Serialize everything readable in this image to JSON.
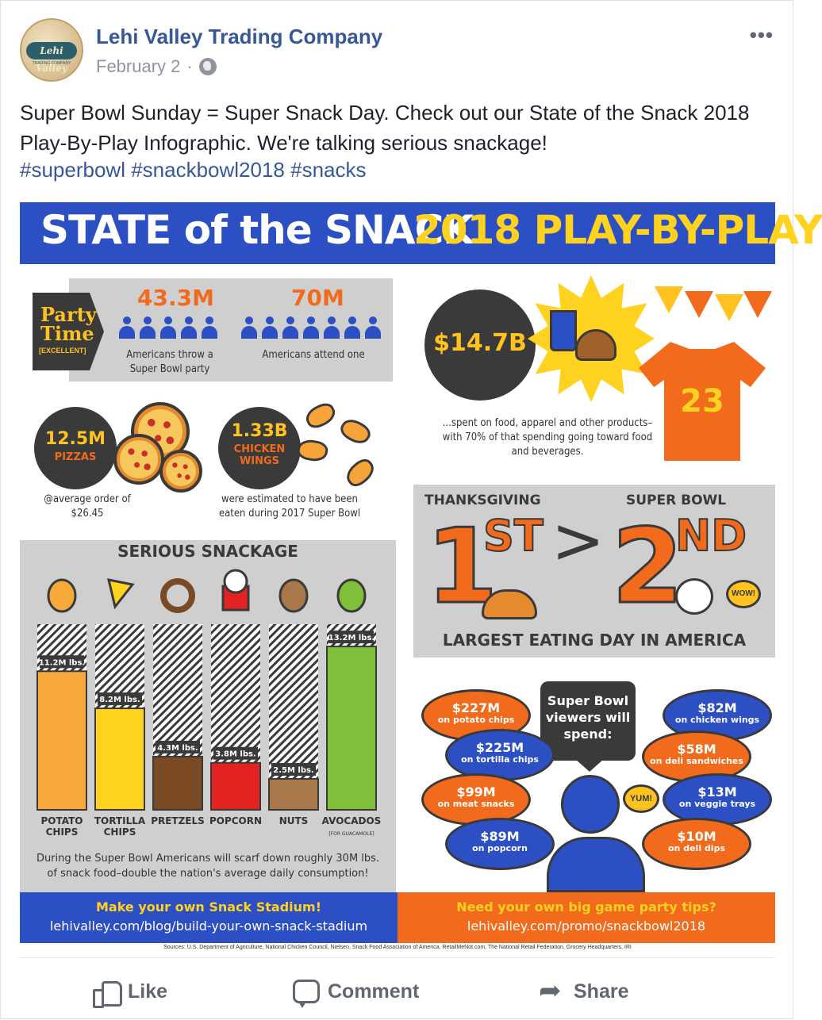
{
  "post": {
    "page_name": "Lehi Valley Trading Company",
    "date": "February 2",
    "separator": "·",
    "more": "•••",
    "avatar_logo": "Lehi Valley",
    "avatar_sub": "TRADING COMPANY",
    "text": "Super Bowl Sunday = Super Snack Day. Check out our State of the Snack 2018 Play-By-Play Infographic. We're talking serious snackage!",
    "hashtags": "#superbowl #snackbowl2018 #snacks"
  },
  "infographic": {
    "title_white": "STATE of the SNACK",
    "title_yellow": "2018 PLAY-BY-PLAY",
    "party": {
      "tag_line1": "Party",
      "tag_line2": "Time",
      "tag_sub": "[EXCELLENT]",
      "stat1": "43.3M",
      "stat1_caption": "Americans throw a Super Bowl party",
      "stat2": "70M",
      "stat2_caption": "Americans attend one"
    },
    "spend": {
      "amount": "$14.7B",
      "caption": "...spent on food, apparel and other products– with 70% of that spending going toward food and beverages.",
      "jersey_number": "23"
    },
    "pizzas": {
      "amount": "12.5M",
      "label": "PIZZAS",
      "caption": "@average order of $26.45"
    },
    "wings": {
      "amount": "1.33B",
      "label": "CHICKEN WINGS",
      "caption": "were estimated to have been eaten during 2017 Super Bowl"
    },
    "eating_day": {
      "left_label": "THANKSGIVING",
      "left_rank": "1",
      "left_suffix": "ST",
      "right_label": "SUPER BOWL",
      "right_rank": "2",
      "right_suffix": "ND",
      "wow": "WOW!",
      "caption": "LARGEST EATING DAY IN AMERICA"
    },
    "snackage": {
      "title": "SERIOUS SNACKAGE",
      "footnote": "During the Super Bowl Americans will scarf down roughly 30M lbs. of snack food–double the nation's average daily consumption!"
    },
    "viewers": {
      "box_text": "Super Bowl viewers will spend:",
      "yum": "YUM!",
      "items": [
        {
          "amount": "$227M",
          "label": "on potato chips"
        },
        {
          "amount": "$225M",
          "label": "on tortilla chips"
        },
        {
          "amount": "$99M",
          "label": "on meat snacks"
        },
        {
          "amount": "$89M",
          "label": "on popcorn"
        },
        {
          "amount": "$82M",
          "label": "on chicken wings"
        },
        {
          "amount": "$58M",
          "label": "on deli sandwiches"
        },
        {
          "amount": "$13M",
          "label": "on veggie trays"
        },
        {
          "amount": "$10M",
          "label": "on deli dips"
        }
      ]
    },
    "footer": {
      "left_title": "Make your own Snack Stadium!",
      "left_url": "lehivalley.com/blog/build-your-own-snack-stadium",
      "right_title": "Need your own big game party tips?",
      "right_url": "lehivalley.com/promo/snackbowl2018",
      "sources": "Sources: U.S. Department of Agriculture, National Chicken Council, Nielsen, Snack Food Association of America, RetailMeNot.com, The National Retail Federation, Grocery Headquarters, IRI"
    },
    "colors": {
      "blue": "#2c4fc4",
      "orange": "#f26a1b",
      "yellow": "#ffd21f",
      "dark": "#3a3a3a",
      "grey": "#cfcfcf"
    }
  },
  "chart_data": {
    "type": "bar",
    "title": "SERIOUS SNACKAGE",
    "categories": [
      "POTATO CHIPS",
      "TORTILLA CHIPS",
      "PRETZELS",
      "POPCORN",
      "NUTS",
      "AVOCADOS"
    ],
    "category_sub": [
      "",
      "",
      "",
      "",
      "",
      "[FOR GUACAMOLE]"
    ],
    "values": [
      11.2,
      8.2,
      4.3,
      3.8,
      2.5,
      13.2
    ],
    "value_labels": [
      "11.2M lbs.",
      "8.2M lbs.",
      "4.3M lbs.",
      "3.8M lbs.",
      "2.5M lbs.",
      "13.2M lbs."
    ],
    "unit": "M lbs.",
    "colors": [
      "#f7a93a",
      "#ffd21f",
      "#7a4a24",
      "#e32222",
      "#a8784a",
      "#7fbf3a"
    ],
    "ylim": [
      0,
      15
    ]
  },
  "actions": {
    "like": "Like",
    "comment": "Comment",
    "share": "Share"
  }
}
